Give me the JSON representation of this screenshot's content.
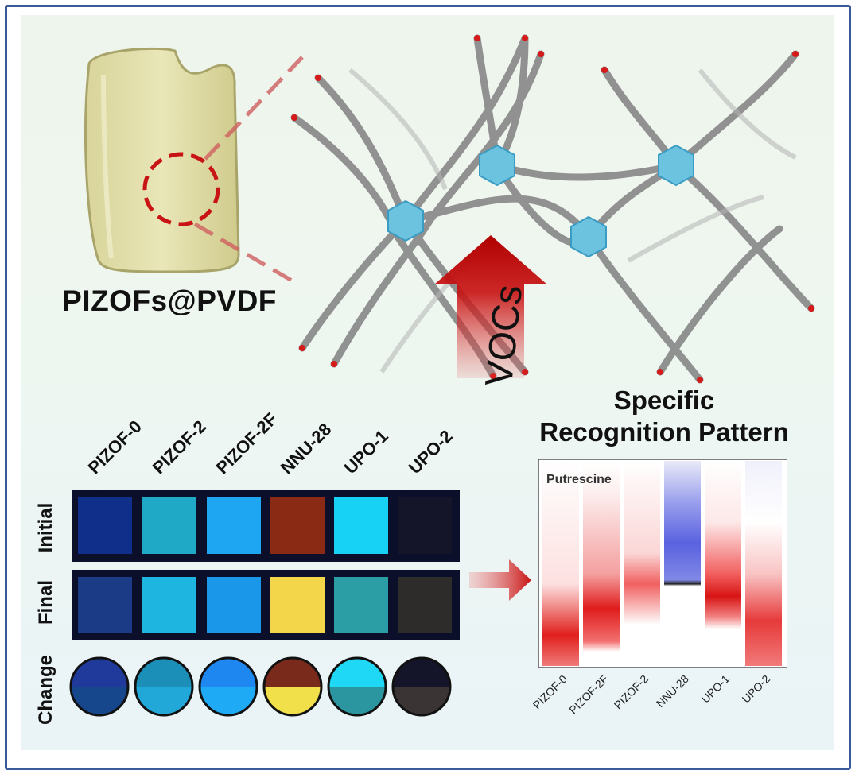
{
  "material_label": "PIZOFs@PVDF",
  "arrow_label": "VOCs",
  "pattern_title_line1": "Specific",
  "pattern_title_line2": "Recognition Pattern",
  "samples": [
    {
      "name": "PIZOF-0",
      "initial": "#0f2f8a",
      "final": "#1b3b86",
      "circle_top": "#1f3a9a",
      "circle_bottom": "#16478c"
    },
    {
      "name": "PIZOF-2",
      "initial": "#1fa9c6",
      "final": "#1eb6e0",
      "circle_top": "#1c8fb8",
      "circle_bottom": "#22a8d8"
    },
    {
      "name": "PIZOF-2F",
      "initial": "#1ea6f2",
      "final": "#1b97ea",
      "circle_top": "#1e88f0",
      "circle_bottom": "#1faaf5"
    },
    {
      "name": "NNU-28",
      "initial": "#8a2a14",
      "final": "#f3d64a",
      "circle_top": "#7a2a1a",
      "circle_bottom": "#f1e04a"
    },
    {
      "name": "UPO-1",
      "initial": "#17d2f4",
      "final": "#2a9ea4",
      "circle_top": "#1ed8f5",
      "circle_bottom": "#2c96a0"
    },
    {
      "name": "UPO-2",
      "initial": "#15152a",
      "final": "#2e2c2a",
      "circle_top": "#15152a",
      "circle_bottom": "#3a3534"
    }
  ],
  "row_labels": [
    "Initial",
    "Final",
    "Change"
  ],
  "chart_data": {
    "type": "heatmap",
    "title": "Putrescine",
    "categories": [
      "PIZOF-0",
      "PIZOF-2F",
      "PIZOF-2",
      "NNU-28",
      "UPO-1",
      "UPO-2"
    ],
    "colorscale": [
      "#2a3ad8",
      "#ffffff",
      "#e01818"
    ]
  }
}
